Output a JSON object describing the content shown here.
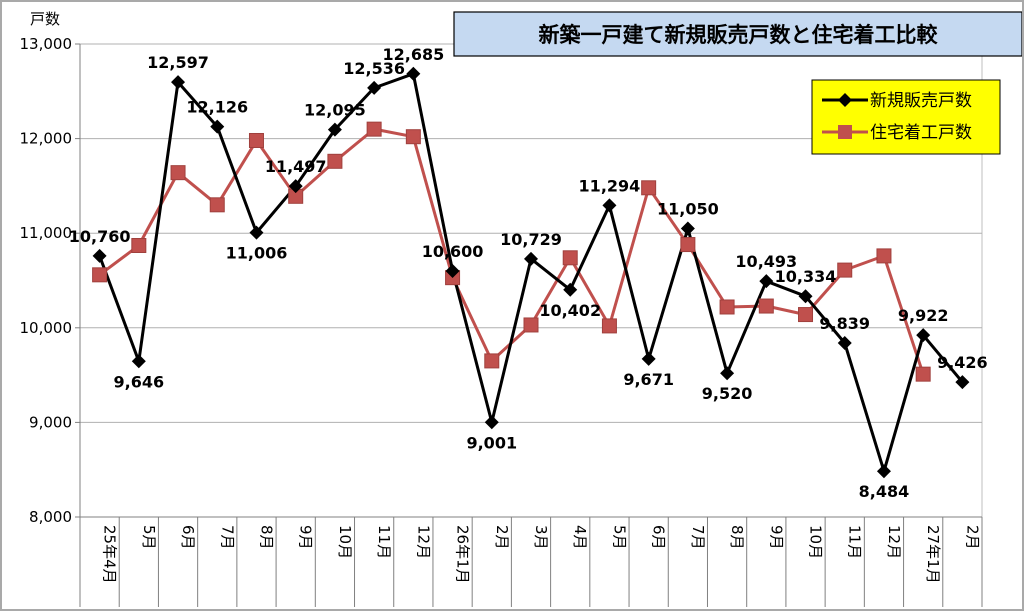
{
  "chart_data": {
    "type": "line",
    "title": "新築一戸建て新規販売戸数と住宅着工比較",
    "ylabel": "戸数",
    "ylim": [
      8000,
      13000
    ],
    "yticks": [
      8000,
      9000,
      10000,
      11000,
      12000,
      13000
    ],
    "ytick_labels": [
      "8,000",
      "9,000",
      "10,000",
      "11,000",
      "12,000",
      "13,000"
    ],
    "categories": [
      "25年4月",
      "5月",
      "6月",
      "7月",
      "8月",
      "9月",
      "10月",
      "11月",
      "12月",
      "26年1月",
      "2月",
      "3月",
      "4月",
      "5月",
      "6月",
      "7月",
      "8月",
      "9月",
      "10月",
      "11月",
      "12月",
      "27年1月",
      "2月"
    ],
    "grid": "horizontal",
    "legend_position": "top-right",
    "series": [
      {
        "name": "新規販売戸数",
        "color": "#000000",
        "marker": "diamond",
        "values": [
          10760,
          9646,
          12597,
          12126,
          11006,
          11497,
          12095,
          12536,
          12685,
          10600,
          9001,
          10729,
          10402,
          11294,
          9671,
          11050,
          9520,
          10493,
          10334,
          9839,
          8484,
          9922,
          9426
        ],
        "labels": [
          "10,760",
          "9,646",
          "12,597",
          "12,126",
          "11,006",
          "11,497",
          "12,095",
          "12,536",
          "12,685",
          "10,600",
          "9,001",
          "10,729",
          "10,402",
          "11,294",
          "9,671",
          "11,050",
          "9,520",
          "10,493",
          "10,334",
          "9,839",
          "8,484",
          "9,922",
          "9,426"
        ]
      },
      {
        "name": "住宅着工戸数",
        "color": "#c0504d",
        "marker": "square",
        "values": [
          10560,
          10870,
          11640,
          11300,
          11980,
          11390,
          11760,
          12100,
          12020,
          10530,
          9650,
          10030,
          10740,
          10020,
          11480,
          10880,
          10220,
          10230,
          10140,
          10610,
          10760,
          9510,
          null
        ]
      }
    ]
  }
}
